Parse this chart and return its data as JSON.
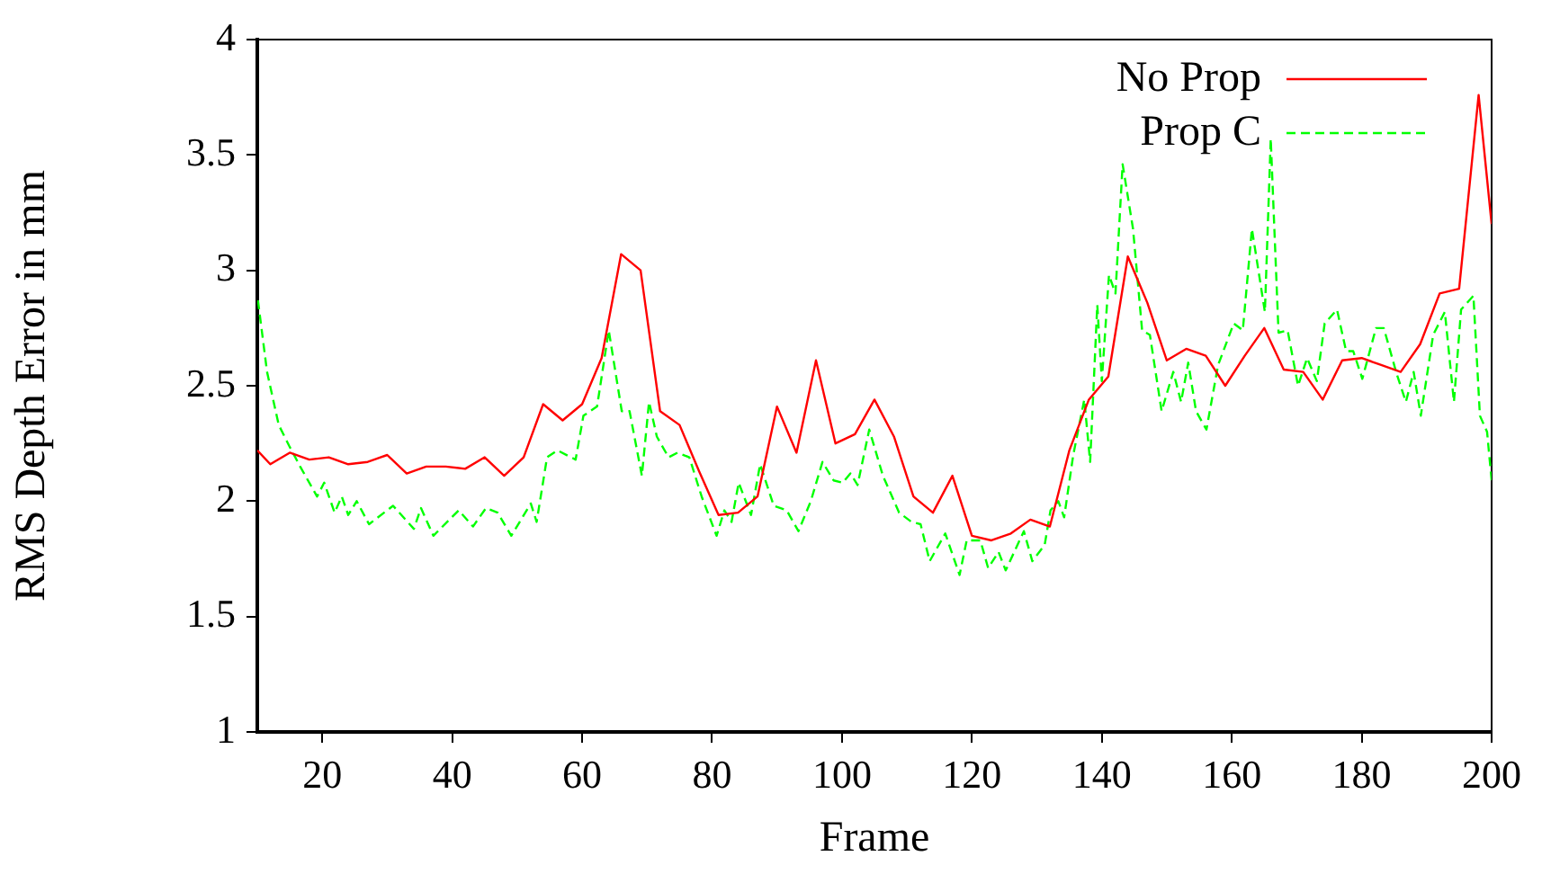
{
  "chart_data": {
    "type": "line",
    "xlabel": "Frame",
    "ylabel": "RMS Depth Error in mm",
    "xlim": [
      10,
      200
    ],
    "xticks": [
      20,
      40,
      60,
      80,
      100,
      120,
      140,
      160,
      180,
      200
    ],
    "ylim": [
      1,
      4
    ],
    "yticks": [
      1,
      1.5,
      2,
      2.5,
      3,
      3.5,
      4
    ],
    "grid": false,
    "legend": "top right",
    "marker": "none",
    "series": [
      {
        "name": "No Prop",
        "color": "#ff0000",
        "line_style": "solid",
        "x": [
          10,
          12,
          15,
          18,
          21,
          24,
          27,
          30,
          33,
          36,
          39,
          42,
          45,
          48,
          51,
          54,
          57,
          60,
          63,
          66,
          69,
          72,
          75,
          78,
          81,
          84,
          87,
          90,
          93,
          96,
          99,
          102,
          105,
          108,
          111,
          114,
          117,
          120,
          123,
          126,
          129,
          132,
          135,
          138,
          141,
          144,
          147,
          150,
          153,
          156,
          159,
          162,
          165,
          168,
          171,
          174,
          177,
          180,
          183,
          186,
          189,
          192,
          195,
          198,
          200
        ],
        "values": [
          2.22,
          2.16,
          2.21,
          2.18,
          2.19,
          2.16,
          2.17,
          2.2,
          2.12,
          2.15,
          2.15,
          2.14,
          2.19,
          2.11,
          2.19,
          2.42,
          2.35,
          2.42,
          2.62,
          3.07,
          3.0,
          2.39,
          2.33,
          2.13,
          1.94,
          1.95,
          2.02,
          2.41,
          2.21,
          2.61,
          2.25,
          2.29,
          2.44,
          2.28,
          2.02,
          1.95,
          2.11,
          1.85,
          1.83,
          1.86,
          1.92,
          1.89,
          2.22,
          2.44,
          2.54,
          3.06,
          2.86,
          2.61,
          2.66,
          2.63,
          2.5,
          2.63,
          2.75,
          2.57,
          2.56,
          2.44,
          2.61,
          2.62,
          2.59,
          2.56,
          2.68,
          2.9,
          2.92,
          3.76,
          3.2
        ]
      },
      {
        "name": "Prop C",
        "color": "#00ff00",
        "line_style": "dashed",
        "x": [
          10.1,
          11.5,
          13.3,
          14.9,
          16.6,
          19.2,
          20.3,
          21.9,
          23,
          24,
          25.3,
          27.2,
          30.9,
          34.1,
          35.2,
          37.1,
          41,
          43.2,
          45.2,
          47,
          49.1,
          52.1,
          53,
          54.6,
          56.2,
          59,
          60.2,
          62.3,
          64.1,
          66.1,
          67.3,
          69.2,
          70.3,
          71.5,
          73.3,
          74.7,
          76.5,
          78.4,
          80.7,
          81.9,
          83,
          84.1,
          86,
          87.4,
          89.5,
          91.5,
          93.3,
          95.2,
          97,
          98.7,
          100.1,
          101.3,
          102.4,
          104.2,
          106.3,
          108.8,
          110.7,
          112.1,
          113.5,
          115.9,
          118.1,
          119.2,
          121.3,
          122.5,
          124.1,
          125.2,
          128,
          129.3,
          131.2,
          132.1,
          133.3,
          134.2,
          135.6,
          137.3,
          138.2,
          139.3,
          140,
          141.1,
          142.1,
          143.2,
          144.8,
          146.2,
          147.4,
          149.2,
          151,
          152.2,
          153.3,
          154.5,
          156.1,
          157.9,
          160.3,
          161.7,
          163.1,
          165.1,
          166,
          167.2,
          168.6,
          170.2,
          171.6,
          173.1,
          174.3,
          176.2,
          177.6,
          178.7,
          180.1,
          182.2,
          183.4,
          185.4,
          186.8,
          188,
          189.1,
          191,
          192.8,
          194.2,
          195.3,
          197.2,
          198.2,
          199.3,
          200
        ],
        "values": [
          2.87,
          2.56,
          2.33,
          2.24,
          2.15,
          2.02,
          2.08,
          1.95,
          2.02,
          1.94,
          2.0,
          1.9,
          1.98,
          1.88,
          1.97,
          1.85,
          1.96,
          1.89,
          1.97,
          1.95,
          1.85,
          1.99,
          1.91,
          2.19,
          2.22,
          2.18,
          2.37,
          2.41,
          2.74,
          2.39,
          2.39,
          2.11,
          2.43,
          2.28,
          2.19,
          2.21,
          2.19,
          2.02,
          1.85,
          1.96,
          1.91,
          2.08,
          1.94,
          2.16,
          1.98,
          1.96,
          1.87,
          2.0,
          2.17,
          2.09,
          2.08,
          2.12,
          2.07,
          2.31,
          2.11,
          1.95,
          1.91,
          1.9,
          1.74,
          1.86,
          1.68,
          1.83,
          1.83,
          1.71,
          1.78,
          1.7,
          1.87,
          1.74,
          1.81,
          1.96,
          2.0,
          1.93,
          2.2,
          2.44,
          2.17,
          2.85,
          2.52,
          2.98,
          2.9,
          3.46,
          3.18,
          2.74,
          2.72,
          2.39,
          2.56,
          2.43,
          2.6,
          2.39,
          2.31,
          2.59,
          2.77,
          2.74,
          3.18,
          2.82,
          3.57,
          2.73,
          2.74,
          2.5,
          2.62,
          2.52,
          2.77,
          2.83,
          2.65,
          2.65,
          2.53,
          2.75,
          2.75,
          2.55,
          2.43,
          2.56,
          2.37,
          2.72,
          2.82,
          2.43,
          2.83,
          2.89,
          2.37,
          2.3,
          2.09
        ]
      }
    ]
  }
}
